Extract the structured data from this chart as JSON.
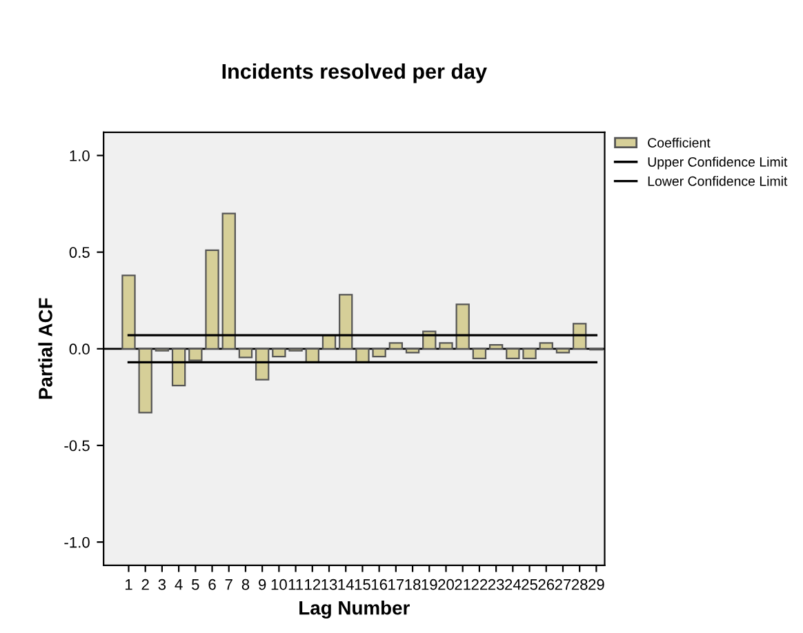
{
  "chart_data": {
    "type": "bar",
    "title": "Incidents resolved per day",
    "xlabel": "Lag Number",
    "ylabel": "Partial ACF",
    "categories": [
      "1",
      "2",
      "3",
      "4",
      "5",
      "6",
      "7",
      "8",
      "9",
      "10",
      "11",
      "12",
      "13",
      "14",
      "15",
      "16",
      "17",
      "18",
      "19",
      "20",
      "21",
      "22",
      "23",
      "24",
      "25",
      "26",
      "27",
      "28",
      "29"
    ],
    "series": [
      {
        "name": "Coefficient",
        "color": "#d6cf98",
        "values": [
          0.38,
          -0.33,
          -0.01,
          -0.19,
          -0.06,
          0.51,
          0.7,
          -0.045,
          -0.16,
          -0.04,
          -0.01,
          -0.07,
          0.07,
          0.28,
          -0.07,
          -0.04,
          0.03,
          -0.02,
          0.09,
          0.03,
          0.23,
          -0.05,
          0.02,
          -0.05,
          -0.05,
          0.03,
          -0.02,
          0.13,
          -0.005
        ]
      },
      {
        "name": "Upper Confidence Limit",
        "type": "line",
        "color": "#000000",
        "values": [
          0.07,
          0.07,
          0.07,
          0.07,
          0.07,
          0.07,
          0.07,
          0.07,
          0.07,
          0.07,
          0.07,
          0.07,
          0.07,
          0.07,
          0.07,
          0.07,
          0.07,
          0.07,
          0.07,
          0.07,
          0.07,
          0.07,
          0.07,
          0.07,
          0.07,
          0.07,
          0.07,
          0.07,
          0.07
        ]
      },
      {
        "name": "Lower Confidence Limit",
        "type": "line",
        "color": "#000000",
        "values": [
          -0.07,
          -0.07,
          -0.07,
          -0.07,
          -0.07,
          -0.07,
          -0.07,
          -0.07,
          -0.07,
          -0.07,
          -0.07,
          -0.07,
          -0.07,
          -0.07,
          -0.07,
          -0.07,
          -0.07,
          -0.07,
          -0.07,
          -0.07,
          -0.07,
          -0.07,
          -0.07,
          -0.07,
          -0.07,
          -0.07,
          -0.07,
          -0.07,
          -0.07
        ]
      }
    ],
    "ylim": [
      -1.12,
      1.12
    ],
    "yticks": [
      {
        "value": -1.0,
        "label": "-1.0"
      },
      {
        "value": -0.5,
        "label": "-0.5"
      },
      {
        "value": 0.0,
        "label": "0.0"
      },
      {
        "value": 0.5,
        "label": "0.5"
      },
      {
        "value": 1.0,
        "label": "1.0"
      }
    ],
    "ref_lines": [
      {
        "axis": "y",
        "value": 0
      }
    ],
    "legend": "top right"
  }
}
